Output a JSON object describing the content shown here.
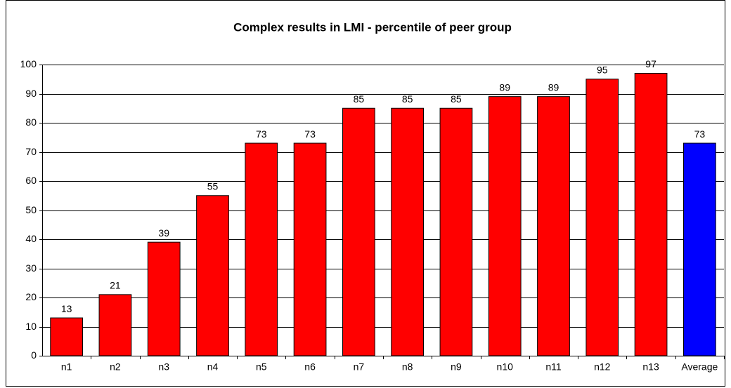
{
  "chart_data": {
    "type": "bar",
    "title": "Complex results in LMI - percentile of peer group",
    "categories": [
      "n1",
      "n2",
      "n3",
      "n4",
      "n5",
      "n6",
      "n7",
      "n8",
      "n9",
      "n10",
      "n11",
      "n12",
      "n13",
      "Average"
    ],
    "values": [
      13,
      21,
      39,
      55,
      73,
      73,
      85,
      85,
      85,
      89,
      89,
      95,
      97,
      73
    ],
    "colors": [
      "#ff0000",
      "#ff0000",
      "#ff0000",
      "#ff0000",
      "#ff0000",
      "#ff0000",
      "#ff0000",
      "#ff0000",
      "#ff0000",
      "#ff0000",
      "#ff0000",
      "#ff0000",
      "#ff0000",
      "#0000ff"
    ],
    "ylim": [
      0,
      100
    ],
    "yticks": [
      0,
      10,
      20,
      30,
      40,
      50,
      60,
      70,
      80,
      90,
      100
    ],
    "grid": true,
    "data_labels": true
  }
}
